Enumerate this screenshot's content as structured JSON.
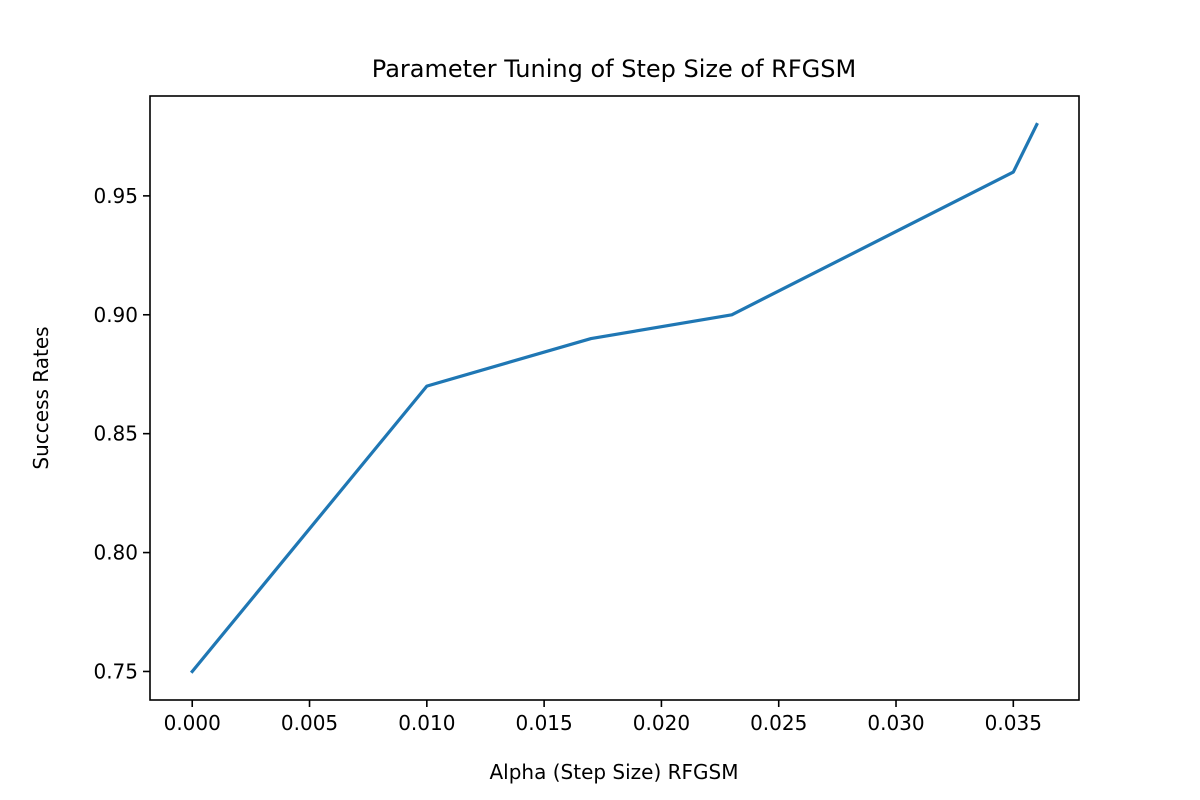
{
  "chart_data": {
    "type": "line",
    "title": "Parameter Tuning of Step Size of RFGSM",
    "xlabel": "Alpha (Step Size) RFGSM",
    "ylabel": "Success Rates",
    "xlim": [
      -0.0018,
      0.0378
    ],
    "ylim": [
      0.738,
      0.992
    ],
    "xticks": [
      0.0,
      0.005,
      0.01,
      0.015,
      0.02,
      0.025,
      0.03,
      0.035
    ],
    "xtick_labels": [
      "0.000",
      "0.005",
      "0.010",
      "0.015",
      "0.020",
      "0.025",
      "0.030",
      "0.035"
    ],
    "yticks": [
      0.75,
      0.8,
      0.85,
      0.9,
      0.95
    ],
    "ytick_labels": [
      "0.75",
      "0.80",
      "0.85",
      "0.90",
      "0.95"
    ],
    "grid": false,
    "series": [
      {
        "color": "#1f77b4",
        "x": [
          0.0,
          0.01,
          0.017,
          0.023,
          0.035,
          0.036
        ],
        "y": [
          0.75,
          0.87,
          0.89,
          0.9,
          0.96,
          0.98
        ]
      }
    ]
  }
}
